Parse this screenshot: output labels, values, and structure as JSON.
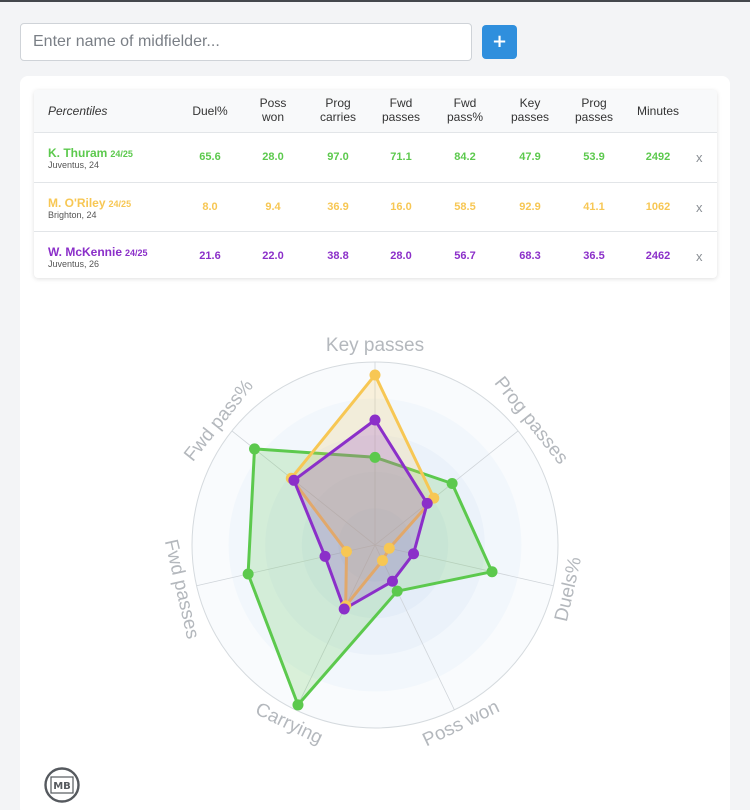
{
  "search": {
    "placeholder": "Enter name of midfielder..."
  },
  "add_button": {
    "label": "+"
  },
  "table": {
    "first_header": "Percentiles",
    "headers": [
      [
        "Duel%"
      ],
      [
        "Poss",
        "won"
      ],
      [
        "Prog",
        "carries"
      ],
      [
        "Fwd",
        "passes"
      ],
      [
        "Fwd",
        "pass%"
      ],
      [
        "Key",
        "passes"
      ],
      [
        "Prog",
        "passes"
      ],
      [
        "Minutes"
      ]
    ],
    "remove_label": "x"
  },
  "players": [
    {
      "name": "K. Thuram",
      "season": "24/25",
      "team": "Juventus, 24",
      "color": "#5cc94d",
      "cells": [
        "65.6",
        "28.0",
        "97.0",
        "71.1",
        "84.2",
        "47.9",
        "53.9",
        "2492"
      ]
    },
    {
      "name": "M. O'Riley",
      "season": "24/25",
      "team": "Brighton, 24",
      "color": "#f7c754",
      "cells": [
        "8.0",
        "9.4",
        "36.9",
        "16.0",
        "58.5",
        "92.9",
        "41.1",
        "1062"
      ]
    },
    {
      "name": "W. McKennie",
      "season": "24/25",
      "team": "Juventus, 26",
      "color": "#8b2fc9",
      "cells": [
        "21.6",
        "22.0",
        "38.8",
        "28.0",
        "56.7",
        "68.3",
        "36.5",
        "2462"
      ]
    }
  ],
  "chart_data": {
    "type": "radar",
    "axes": [
      "Key passes",
      "Prog passes",
      "Duels%",
      "Poss won",
      "Carrying",
      "Fwd passes",
      "Fwd pass%"
    ],
    "rmax": 100,
    "series": [
      {
        "name": "K. Thuram",
        "color": "#5cc94d",
        "values": [
          47.9,
          53.9,
          65.6,
          28.0,
          97.0,
          71.1,
          84.2
        ]
      },
      {
        "name": "M. O'Riley",
        "color": "#f7c754",
        "values": [
          92.9,
          41.1,
          8.0,
          9.4,
          36.9,
          16.0,
          58.5
        ]
      },
      {
        "name": "W. McKennie",
        "color": "#8b2fc9",
        "values": [
          68.3,
          36.5,
          21.6,
          22.0,
          38.8,
          28.0,
          56.7
        ]
      }
    ]
  },
  "logo": {
    "text": "MB"
  }
}
